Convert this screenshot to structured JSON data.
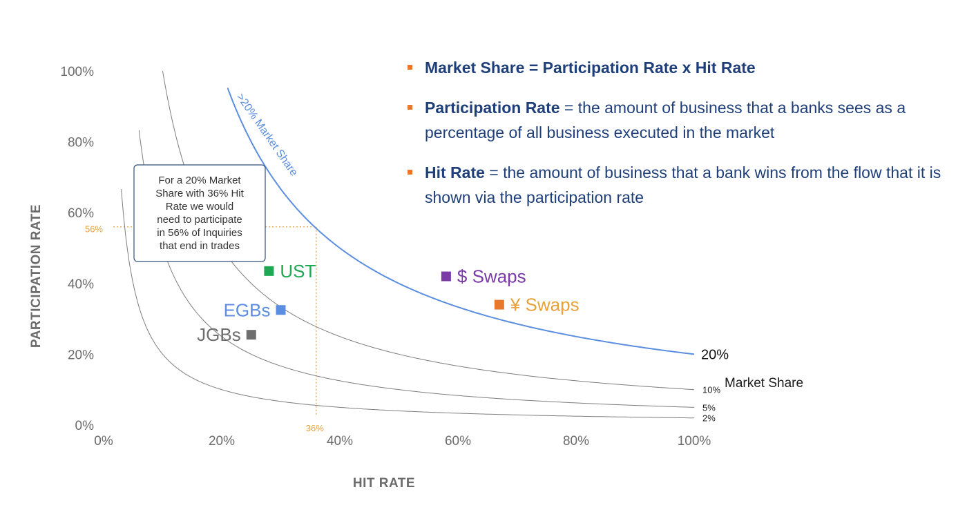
{
  "colors": {
    "axis_text": "#6b6b6b",
    "curve": "#7d7d7d",
    "highlight_curve": "#5b8ee0",
    "guide": "#e9a13a",
    "bullet_marker": "#e9772c",
    "bullet_text": "#1f3f7a",
    "callout_border": "#2f4f7a"
  },
  "bullets": [
    {
      "bold": "Market Share = Participation Rate x Hit Rate",
      "text": ""
    },
    {
      "bold": "Participation Rate",
      "text": " = the amount of business that a banks sees as a percentage of all business executed in the market"
    },
    {
      "bold": "Hit Rate",
      "text": " = the amount of business that a bank wins from the flow that it is shown via the participation rate"
    }
  ],
  "callout": [
    "For a 20% Market",
    "Share with 36% Hit",
    "Rate we would",
    "need to participate",
    "in 56% of Inquiries",
    "that end in trades"
  ],
  "chart_data": {
    "type": "line",
    "xlabel": "HIT RATE",
    "ylabel": "PARTICIPATION RATE",
    "xlim": [
      0,
      100
    ],
    "ylim": [
      0,
      100
    ],
    "xticks": [
      0,
      20,
      40,
      60,
      80,
      100
    ],
    "yticks": [
      0,
      20,
      40,
      60,
      80,
      100
    ],
    "xtick_labels": [
      "0%",
      "20%",
      "40%",
      "60%",
      "80%",
      "100%"
    ],
    "ytick_labels": [
      "0%",
      "20%",
      "40%",
      "60%",
      "80%",
      "100%"
    ],
    "curves": [
      {
        "share": 2,
        "end_label": "2%",
        "color": "#7d7d7d"
      },
      {
        "share": 5,
        "end_label": "5%",
        "color": "#7d7d7d"
      },
      {
        "share": 10,
        "end_label": "10%",
        "color": "#7d7d7d"
      },
      {
        "share": 20,
        "end_label": "20%",
        "color": "#5b8ee0"
      }
    ],
    "curve_x_min": [
      3,
      6,
      10,
      21
    ],
    "series_label": "Market Share",
    "curve_annotation": ">20% Market Share",
    "guide": {
      "x": 36,
      "y": 56,
      "x_label": "36%",
      "y_label": "56%"
    },
    "points": [
      {
        "label": "UST",
        "x": 28,
        "y": 43.5,
        "color": "#1ea854",
        "label_color": "#1ea854",
        "label_side": "right"
      },
      {
        "label": "EGBs",
        "x": 30,
        "y": 32.5,
        "color": "#5b8ee0",
        "label_color": "#5b8ee0",
        "label_side": "left"
      },
      {
        "label": "JGBs",
        "x": 25,
        "y": 25.5,
        "color": "#6e6e6e",
        "label_color": "#6e6e6e",
        "label_side": "left"
      },
      {
        "label": "$ Swaps",
        "x": 58,
        "y": 42,
        "color": "#7a3aa8",
        "label_color": "#7a3aa8",
        "label_side": "right"
      },
      {
        "label": "¥ Swaps",
        "x": 67,
        "y": 34,
        "color": "#e9772c",
        "label_color": "#e9a13a",
        "label_side": "right"
      }
    ]
  }
}
